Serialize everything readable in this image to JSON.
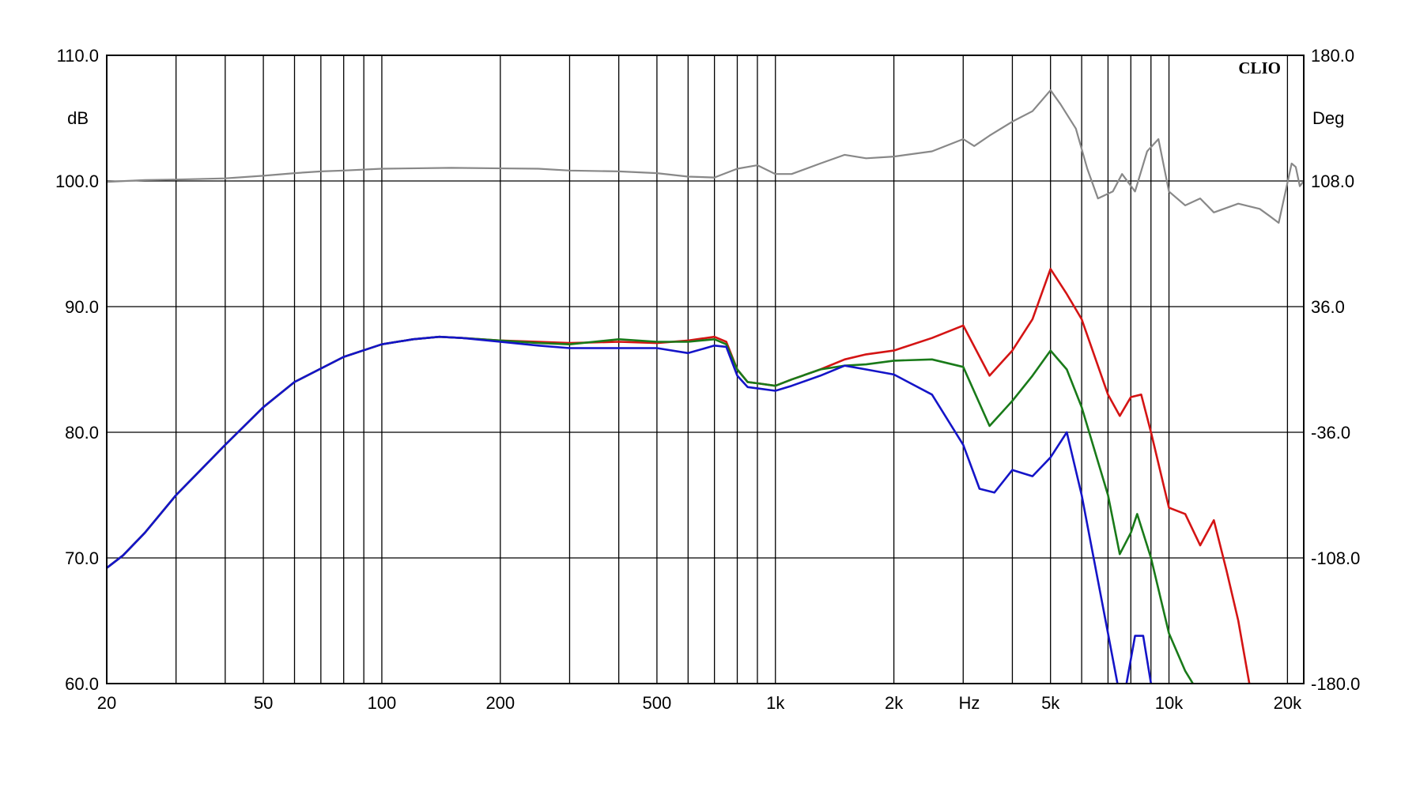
{
  "chart_data": {
    "type": "line",
    "brand": "CLIO",
    "xscale": "log",
    "xlim": [
      20,
      22000
    ],
    "ylim": [
      60,
      110
    ],
    "y2lim": [
      -180,
      180
    ],
    "ylabel": "dB",
    "y2label": "Deg",
    "xunit_label": "Hz",
    "grid": true,
    "x_ticks": [
      {
        "value": 20,
        "label": "20"
      },
      {
        "value": 50,
        "label": "50"
      },
      {
        "value": 100,
        "label": "100"
      },
      {
        "value": 200,
        "label": "200"
      },
      {
        "value": 500,
        "label": "500"
      },
      {
        "value": 1000,
        "label": "1k"
      },
      {
        "value": 2000,
        "label": "2k"
      },
      {
        "value": 5000,
        "label": "5k"
      },
      {
        "value": 10000,
        "label": "10k"
      },
      {
        "value": 20000,
        "label": "20k"
      }
    ],
    "y_ticks": [
      {
        "value": 110,
        "label": "110.0"
      },
      {
        "value": 100,
        "label": "100.0"
      },
      {
        "value": 90,
        "label": "90.0"
      },
      {
        "value": 80,
        "label": "80.0"
      },
      {
        "value": 70,
        "label": "70.0"
      },
      {
        "value": 60,
        "label": "60.0"
      }
    ],
    "y2_ticks": [
      {
        "value": 180,
        "label": "180.0"
      },
      {
        "value": 108,
        "label": "108.0"
      },
      {
        "value": 36,
        "label": "36.0"
      },
      {
        "value": -36,
        "label": "-36.0"
      },
      {
        "value": -108,
        "label": "-108.0"
      },
      {
        "value": -180,
        "label": "-180.0"
      }
    ],
    "series": [
      {
        "color": "#888888",
        "axis": "y2",
        "points": [
          [
            20,
            107.5
          ],
          [
            25,
            108.5
          ],
          [
            30,
            108.8
          ],
          [
            40,
            109.5
          ],
          [
            50,
            111
          ],
          [
            60,
            112.5
          ],
          [
            70,
            113.5
          ],
          [
            80,
            114
          ],
          [
            100,
            115
          ],
          [
            150,
            115.5
          ],
          [
            250,
            115
          ],
          [
            300,
            114
          ],
          [
            400,
            113.5
          ],
          [
            500,
            112.5
          ],
          [
            600,
            110.5
          ],
          [
            700,
            110
          ],
          [
            800,
            115
          ],
          [
            900,
            117
          ],
          [
            1000,
            112
          ],
          [
            1100,
            112
          ],
          [
            1300,
            118
          ],
          [
            1500,
            123
          ],
          [
            1700,
            121
          ],
          [
            2000,
            122
          ],
          [
            2500,
            125
          ],
          [
            3000,
            132
          ],
          [
            3200,
            128
          ],
          [
            3500,
            134
          ],
          [
            4000,
            142
          ],
          [
            4500,
            148
          ],
          [
            5000,
            160
          ],
          [
            5300,
            152
          ],
          [
            5800,
            138
          ],
          [
            6200,
            115
          ],
          [
            6600,
            98
          ],
          [
            7200,
            102
          ],
          [
            7600,
            112
          ],
          [
            8200,
            102
          ],
          [
            8800,
            125
          ],
          [
            9400,
            132
          ],
          [
            10000,
            102
          ],
          [
            11000,
            94
          ],
          [
            12000,
            98
          ],
          [
            13000,
            90
          ],
          [
            15000,
            95
          ],
          [
            17000,
            92
          ],
          [
            18000,
            88
          ],
          [
            19000,
            84
          ],
          [
            20500,
            118
          ],
          [
            21000,
            116
          ],
          [
            21500,
            105
          ],
          [
            22000,
            108
          ]
        ]
      },
      {
        "color": "#d41414",
        "axis": "y",
        "points": [
          [
            20,
            69.2
          ],
          [
            22,
            70.2
          ],
          [
            25,
            72
          ],
          [
            30,
            75
          ],
          [
            40,
            79
          ],
          [
            50,
            82
          ],
          [
            60,
            84
          ],
          [
            80,
            86
          ],
          [
            100,
            87
          ],
          [
            120,
            87.4
          ],
          [
            140,
            87.6
          ],
          [
            160,
            87.5
          ],
          [
            200,
            87.3
          ],
          [
            250,
            87.2
          ],
          [
            300,
            87.1
          ],
          [
            400,
            87.2
          ],
          [
            500,
            87.1
          ],
          [
            600,
            87.3
          ],
          [
            700,
            87.6
          ],
          [
            750,
            87.2
          ],
          [
            800,
            85
          ],
          [
            850,
            84
          ],
          [
            900,
            83.9
          ],
          [
            1000,
            83.7
          ],
          [
            1100,
            84.2
          ],
          [
            1300,
            85
          ],
          [
            1500,
            85.8
          ],
          [
            1700,
            86.2
          ],
          [
            2000,
            86.5
          ],
          [
            2500,
            87.5
          ],
          [
            3000,
            88.5
          ],
          [
            3500,
            84.5
          ],
          [
            4000,
            86.5
          ],
          [
            4500,
            89
          ],
          [
            5000,
            93
          ],
          [
            5500,
            91
          ],
          [
            6000,
            89
          ],
          [
            7000,
            83
          ],
          [
            7500,
            81.3
          ],
          [
            8000,
            82.8
          ],
          [
            8500,
            83
          ],
          [
            9000,
            80
          ],
          [
            10000,
            74
          ],
          [
            11000,
            73.5
          ],
          [
            12000,
            71
          ],
          [
            13000,
            73
          ],
          [
            14000,
            69
          ],
          [
            15000,
            65
          ],
          [
            16000,
            60
          ]
        ]
      },
      {
        "color": "#197a19",
        "axis": "y",
        "points": [
          [
            20,
            69.2
          ],
          [
            22,
            70.2
          ],
          [
            25,
            72
          ],
          [
            30,
            75
          ],
          [
            40,
            79
          ],
          [
            50,
            82
          ],
          [
            60,
            84
          ],
          [
            80,
            86
          ],
          [
            100,
            87
          ],
          [
            120,
            87.4
          ],
          [
            140,
            87.6
          ],
          [
            160,
            87.5
          ],
          [
            200,
            87.3
          ],
          [
            250,
            87.1
          ],
          [
            300,
            87
          ],
          [
            400,
            87.4
          ],
          [
            500,
            87.2
          ],
          [
            600,
            87.2
          ],
          [
            700,
            87.4
          ],
          [
            750,
            87
          ],
          [
            800,
            85
          ],
          [
            850,
            84
          ],
          [
            900,
            83.9
          ],
          [
            1000,
            83.7
          ],
          [
            1100,
            84.2
          ],
          [
            1300,
            85
          ],
          [
            1500,
            85.3
          ],
          [
            1700,
            85.4
          ],
          [
            2000,
            85.7
          ],
          [
            2500,
            85.8
          ],
          [
            3000,
            85.2
          ],
          [
            3500,
            80.5
          ],
          [
            4000,
            82.5
          ],
          [
            4500,
            84.5
          ],
          [
            5000,
            86.5
          ],
          [
            5500,
            85
          ],
          [
            6000,
            82
          ],
          [
            7000,
            75
          ],
          [
            7500,
            70.3
          ],
          [
            8000,
            72
          ],
          [
            8300,
            73.5
          ],
          [
            9000,
            70
          ],
          [
            10000,
            64
          ],
          [
            11000,
            61
          ],
          [
            11500,
            60
          ]
        ]
      },
      {
        "color": "#1414c8",
        "axis": "y",
        "points": [
          [
            20,
            69.2
          ],
          [
            22,
            70.2
          ],
          [
            25,
            72
          ],
          [
            30,
            75
          ],
          [
            40,
            79
          ],
          [
            50,
            82
          ],
          [
            60,
            84
          ],
          [
            80,
            86
          ],
          [
            100,
            87
          ],
          [
            120,
            87.4
          ],
          [
            140,
            87.6
          ],
          [
            160,
            87.5
          ],
          [
            200,
            87.2
          ],
          [
            250,
            86.9
          ],
          [
            300,
            86.7
          ],
          [
            400,
            86.7
          ],
          [
            500,
            86.7
          ],
          [
            600,
            86.3
          ],
          [
            700,
            86.9
          ],
          [
            750,
            86.8
          ],
          [
            800,
            84.5
          ],
          [
            850,
            83.6
          ],
          [
            900,
            83.5
          ],
          [
            1000,
            83.3
          ],
          [
            1100,
            83.7
          ],
          [
            1300,
            84.5
          ],
          [
            1500,
            85.3
          ],
          [
            1700,
            85
          ],
          [
            2000,
            84.6
          ],
          [
            2500,
            83
          ],
          [
            3000,
            79
          ],
          [
            3300,
            75.5
          ],
          [
            3600,
            75.2
          ],
          [
            4000,
            77
          ],
          [
            4500,
            76.5
          ],
          [
            5000,
            78
          ],
          [
            5500,
            80
          ],
          [
            6000,
            75
          ],
          [
            7000,
            64
          ],
          [
            7400,
            60
          ]
        ]
      },
      {
        "color": "#1414c8",
        "axis": "y",
        "points": [
          [
            7800,
            60
          ],
          [
            8200,
            63.8
          ],
          [
            8600,
            63.8
          ],
          [
            9000,
            60
          ]
        ]
      }
    ]
  }
}
